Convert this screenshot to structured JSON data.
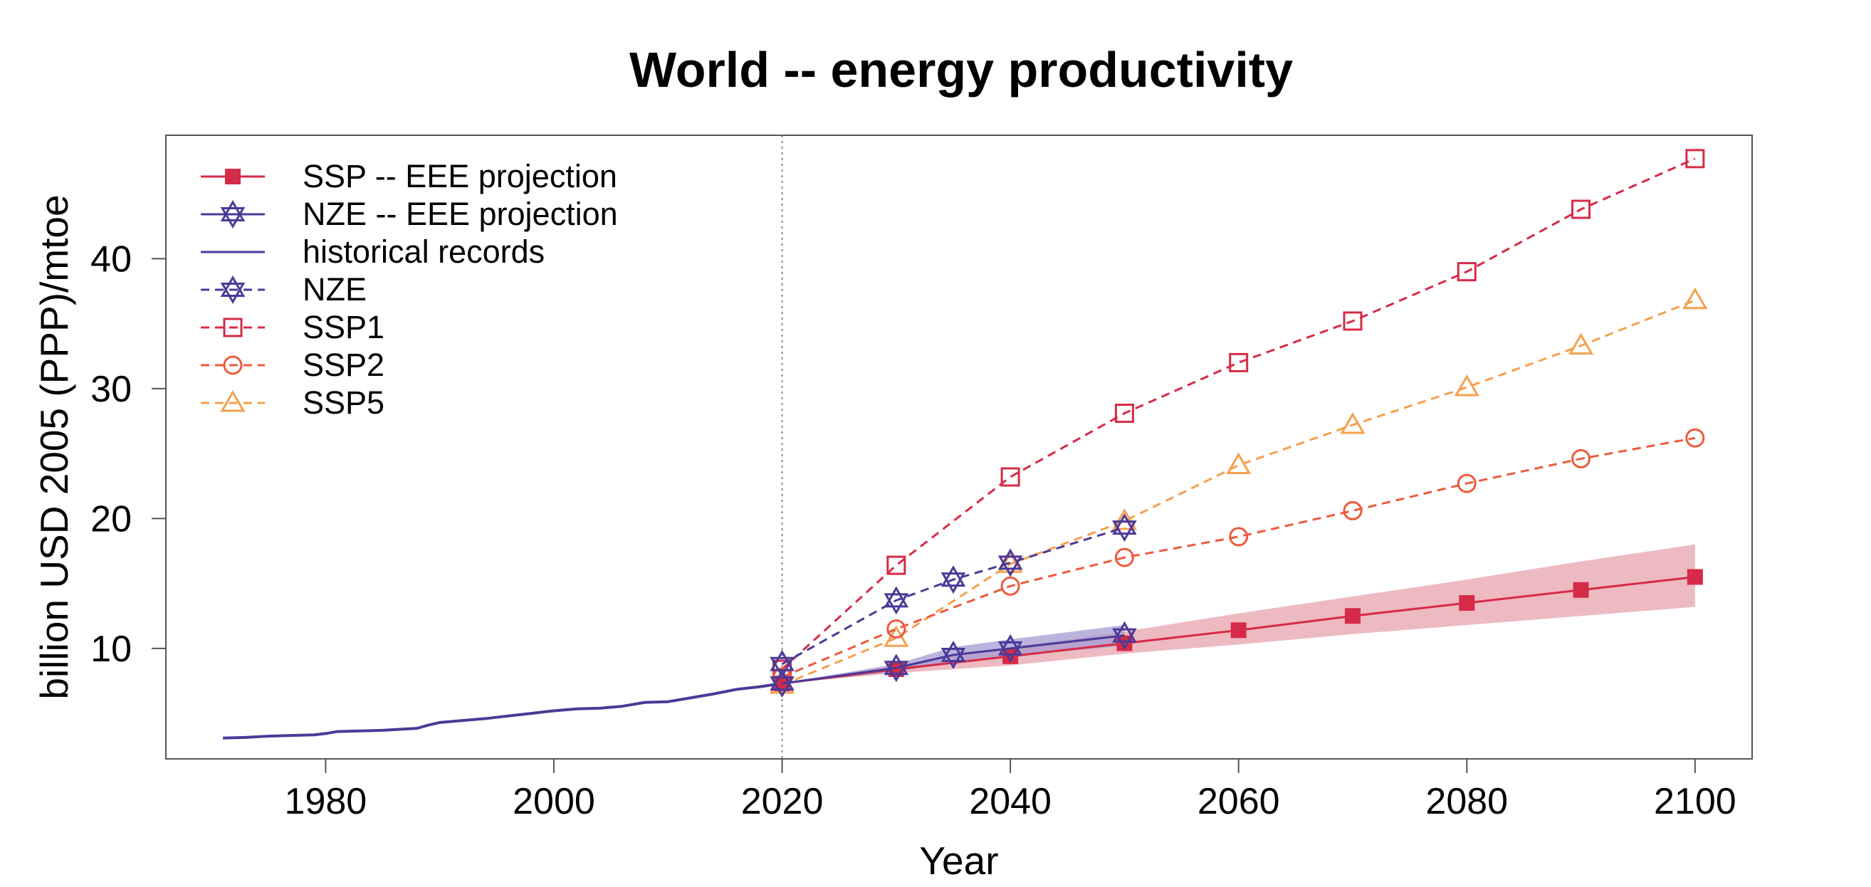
{
  "chart_data": {
    "type": "line",
    "title": "World -- energy productivity",
    "xlabel": "Year",
    "ylabel": "billion USD 2005 (PPP)/mtoe",
    "xlim": [
      1966,
      2105
    ],
    "ylim": [
      1.5,
      49.5
    ],
    "xticks": [
      1980,
      2000,
      2020,
      2040,
      2060,
      2080,
      2100
    ],
    "yticks": [
      10,
      20,
      30,
      40
    ],
    "reference_line_x": 2020,
    "legend_position": "top-left",
    "colors": {
      "ssp_eee": "#d62b47",
      "ssp_band": "#e8a3ae",
      "nze_eee": "#4b3a98",
      "nze_band": "#a59bd1",
      "historical": "#4b3a98",
      "nze": "#4b3a98",
      "ssp1": "#d62b47",
      "ssp2": "#ee5a3c",
      "ssp5": "#f6a04d"
    },
    "legend": [
      {
        "key": "ssp_eee",
        "label": "SSP -- EEE projection",
        "marker": "square-filled",
        "dash": false
      },
      {
        "key": "nze_eee",
        "label": "NZE -- EEE projection",
        "marker": "star-of-david",
        "dash": false
      },
      {
        "key": "historical",
        "label": "historical records",
        "marker": "none",
        "dash": false
      },
      {
        "key": "nze",
        "label": "NZE",
        "marker": "star-of-david",
        "dash": true
      },
      {
        "key": "ssp1",
        "label": "SSP1",
        "marker": "square-open",
        "dash": true
      },
      {
        "key": "ssp2",
        "label": "SSP2",
        "marker": "circle-open",
        "dash": true
      },
      {
        "key": "ssp5",
        "label": "SSP5",
        "marker": "triangle-open",
        "dash": true
      }
    ],
    "historical": {
      "x": [
        1971,
        1973,
        1975,
        1977,
        1979,
        1980,
        1981,
        1983,
        1985,
        1987,
        1988,
        1989,
        1990,
        1992,
        1994,
        1996,
        1998,
        2000,
        2002,
        2004,
        2006,
        2008,
        2010,
        2012,
        2014,
        2016,
        2018,
        2020
      ],
      "y": [
        3.1,
        3.15,
        3.25,
        3.3,
        3.35,
        3.45,
        3.6,
        3.65,
        3.7,
        3.8,
        3.85,
        4.1,
        4.3,
        4.45,
        4.6,
        4.8,
        5.0,
        5.2,
        5.35,
        5.4,
        5.55,
        5.85,
        5.9,
        6.2,
        6.5,
        6.85,
        7.05,
        7.3
      ]
    },
    "ssp_eee": {
      "x": [
        2020,
        2030,
        2040,
        2050,
        2060,
        2070,
        2080,
        2090,
        2100
      ],
      "y": [
        7.3,
        8.4,
        9.4,
        10.4,
        11.4,
        12.5,
        13.5,
        14.5,
        15.5
      ],
      "band_lower": [
        7.3,
        8.1,
        8.7,
        9.6,
        10.3,
        11.1,
        11.8,
        12.5,
        13.2
      ],
      "band_upper": [
        7.3,
        8.7,
        10.1,
        11.3,
        12.7,
        14.0,
        15.3,
        16.7,
        18.0
      ]
    },
    "nze_eee": {
      "x": [
        2020,
        2030,
        2035,
        2040,
        2050
      ],
      "y": [
        7.3,
        8.5,
        9.5,
        10.0,
        11.0
      ],
      "band_lower": [
        7.3,
        8.2,
        9.0,
        9.4,
        10.2
      ],
      "band_upper": [
        7.3,
        8.8,
        10.1,
        10.7,
        11.8
      ]
    },
    "nze": {
      "x": [
        2020,
        2030,
        2035,
        2040,
        2050
      ],
      "y": [
        8.8,
        13.7,
        15.3,
        16.6,
        19.3
      ]
    },
    "ssp1": {
      "x": [
        2020,
        2030,
        2040,
        2050,
        2060,
        2070,
        2080,
        2090,
        2100
      ],
      "y": [
        8.4,
        16.4,
        23.2,
        28.1,
        32.0,
        35.2,
        39.0,
        43.8,
        47.7
      ]
    },
    "ssp2": {
      "x": [
        2020,
        2030,
        2040,
        2050,
        2060,
        2070,
        2080,
        2090,
        2100
      ],
      "y": [
        7.8,
        11.5,
        14.8,
        17.0,
        18.6,
        20.6,
        22.7,
        24.6,
        26.2
      ]
    },
    "ssp5": {
      "x": [
        2020,
        2030,
        2040,
        2050,
        2060,
        2070,
        2080,
        2090,
        2100
      ],
      "y": [
        7.2,
        10.8,
        16.5,
        19.8,
        24.1,
        27.2,
        30.1,
        33.3,
        36.8
      ]
    }
  }
}
